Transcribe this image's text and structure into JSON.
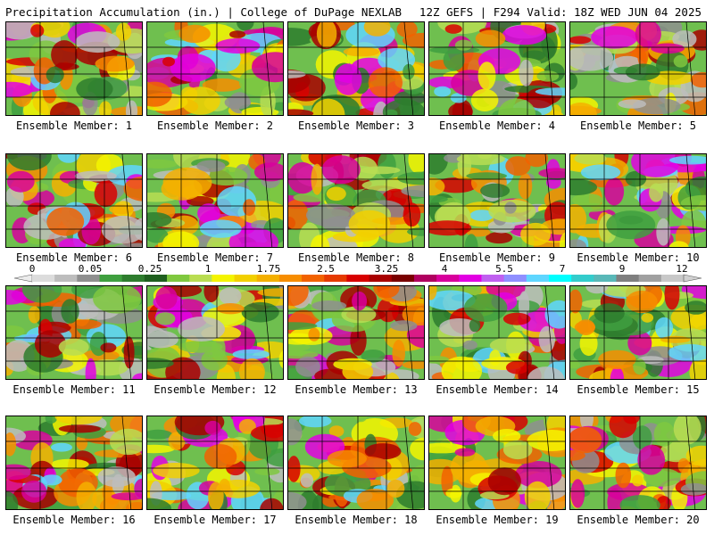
{
  "header": {
    "left_title": "Precipitation Accumulation (in.) | College of DuPage NEXLAB",
    "right_title": "12Z GEFS | F294 Valid: 18Z WED JUN 04 2025"
  },
  "colorbar": {
    "labels": [
      "0",
      "0.05",
      "0.25",
      "1",
      "1.75",
      "2.5",
      "3.25",
      "4",
      "5.5",
      "7",
      "9",
      "12"
    ],
    "colors": [
      "#dcdcdc",
      "#bdbdbd",
      "#8f8f8f",
      "#3f9f3f",
      "#2e7d2e",
      "#1f5f1f",
      "#7fc83f",
      "#b9dd52",
      "#f4f400",
      "#f2d000",
      "#f4b000",
      "#f78d00",
      "#f26200",
      "#e63a00",
      "#d80000",
      "#a90000",
      "#7a0000",
      "#b00060",
      "#d8009c",
      "#e300e3",
      "#c060f0",
      "#8f8fff",
      "#5fd6ff",
      "#00ffff",
      "#33cccc",
      "#59b8b8",
      "#7f7f7f",
      "#a0a0a0",
      "#c8c8c8"
    ]
  },
  "members": [
    {
      "label": "Ensemble Member: 1",
      "icon": "precip-map-member-1"
    },
    {
      "label": "Ensemble Member: 2",
      "icon": "precip-map-member-2"
    },
    {
      "label": "Ensemble Member: 3",
      "icon": "precip-map-member-3"
    },
    {
      "label": "Ensemble Member: 4",
      "icon": "precip-map-member-4"
    },
    {
      "label": "Ensemble Member: 5",
      "icon": "precip-map-member-5"
    },
    {
      "label": "Ensemble Member: 6",
      "icon": "precip-map-member-6"
    },
    {
      "label": "Ensemble Member: 7",
      "icon": "precip-map-member-7"
    },
    {
      "label": "Ensemble Member: 8",
      "icon": "precip-map-member-8"
    },
    {
      "label": "Ensemble Member: 9",
      "icon": "precip-map-member-9"
    },
    {
      "label": "Ensemble Member: 10",
      "icon": "precip-map-member-10"
    },
    {
      "label": "Ensemble Member: 11",
      "icon": "precip-map-member-11"
    },
    {
      "label": "Ensemble Member: 12",
      "icon": "precip-map-member-12"
    },
    {
      "label": "Ensemble Member: 13",
      "icon": "precip-map-member-13"
    },
    {
      "label": "Ensemble Member: 14",
      "icon": "precip-map-member-14"
    },
    {
      "label": "Ensemble Member: 15",
      "icon": "precip-map-member-15"
    },
    {
      "label": "Ensemble Member: 16",
      "icon": "precip-map-member-16"
    },
    {
      "label": "Ensemble Member: 17",
      "icon": "precip-map-member-17"
    },
    {
      "label": "Ensemble Member: 18",
      "icon": "precip-map-member-18"
    },
    {
      "label": "Ensemble Member: 19",
      "icon": "precip-map-member-19"
    },
    {
      "label": "Ensemble Member: 20",
      "icon": "precip-map-member-20"
    }
  ]
}
